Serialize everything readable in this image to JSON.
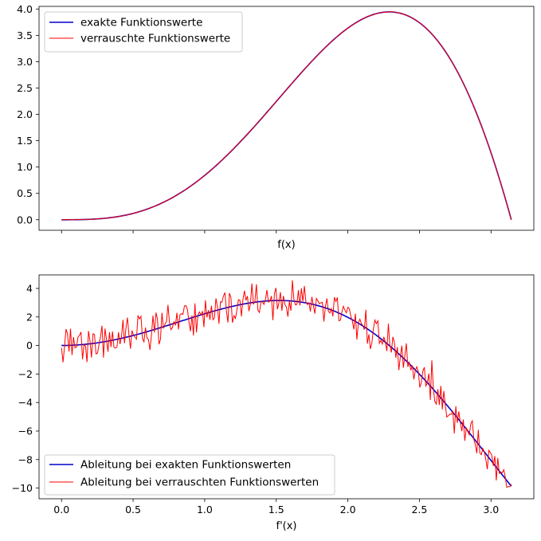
{
  "chart_data": [
    {
      "type": "line",
      "title": "",
      "xlabel": "f(x)",
      "ylabel": "",
      "xlim": [
        -0.157,
        3.299
      ],
      "ylim": [
        -0.2,
        4.05
      ],
      "x_tick_values": [
        0.0,
        0.5,
        1.0,
        1.5,
        2.0,
        2.5,
        3.0
      ],
      "x_tick_labels_visible": false,
      "y_ticks": [
        "0.0",
        "0.5",
        "1.0",
        "1.5",
        "2.0",
        "2.5",
        "3.0",
        "3.5",
        "4.0"
      ],
      "y_tick_values": [
        0.0,
        0.5,
        1.0,
        1.5,
        2.0,
        2.5,
        3.0,
        3.5,
        4.0
      ],
      "grid": false,
      "legend_position": "top-left",
      "x_domain": [
        0.0,
        3.1416
      ],
      "series": [
        {
          "name": "exakte Funktionswerte",
          "color": "#0000cc",
          "description": "x^2 sin x"
        },
        {
          "name": "verrauschte Funktionswerte",
          "color": "#ff0000",
          "description": "x^2 sin x with small noise"
        }
      ],
      "sample_points": {
        "x": [
          0.0,
          0.5,
          1.0,
          1.5,
          2.0,
          2.29,
          2.5,
          3.0,
          3.1416
        ],
        "y": [
          0.0,
          0.12,
          0.84,
          2.24,
          3.64,
          3.95,
          3.74,
          1.27,
          0.0
        ]
      }
    },
    {
      "type": "line",
      "title": "",
      "xlabel": "f'(x)",
      "ylabel": "",
      "xlim": [
        -0.157,
        3.299
      ],
      "ylim": [
        -10.75,
        4.95
      ],
      "x_ticks": [
        "0.0",
        "0.5",
        "1.0",
        "1.5",
        "2.0",
        "2.5",
        "3.0"
      ],
      "x_tick_values": [
        0.0,
        0.5,
        1.0,
        1.5,
        2.0,
        2.5,
        3.0
      ],
      "y_ticks": [
        "−10",
        "−8",
        "−6",
        "−4",
        "−2",
        "0",
        "2",
        "4"
      ],
      "y_tick_values": [
        -10,
        -8,
        -6,
        -4,
        -2,
        0,
        2,
        4
      ],
      "grid": false,
      "legend_position": "bottom-left",
      "x_domain": [
        0.0,
        3.1416
      ],
      "series": [
        {
          "name": "Ableitung bei exakten Funktionswerten",
          "color": "#0000cc",
          "description": "2x sin x + x^2 cos x"
        },
        {
          "name": "Ableitung bei verrauschten Funktionswerten",
          "color": "#ff0000",
          "description": "numerical derivative of noisy values, fluctuating about ±1"
        }
      ],
      "sample_points": {
        "x": [
          0.0,
          0.5,
          1.0,
          1.5,
          2.0,
          2.5,
          3.0,
          3.1416
        ],
        "y": [
          0.0,
          0.7,
          2.22,
          3.15,
          1.97,
          -2.01,
          -8.06,
          -9.87
        ]
      }
    }
  ]
}
